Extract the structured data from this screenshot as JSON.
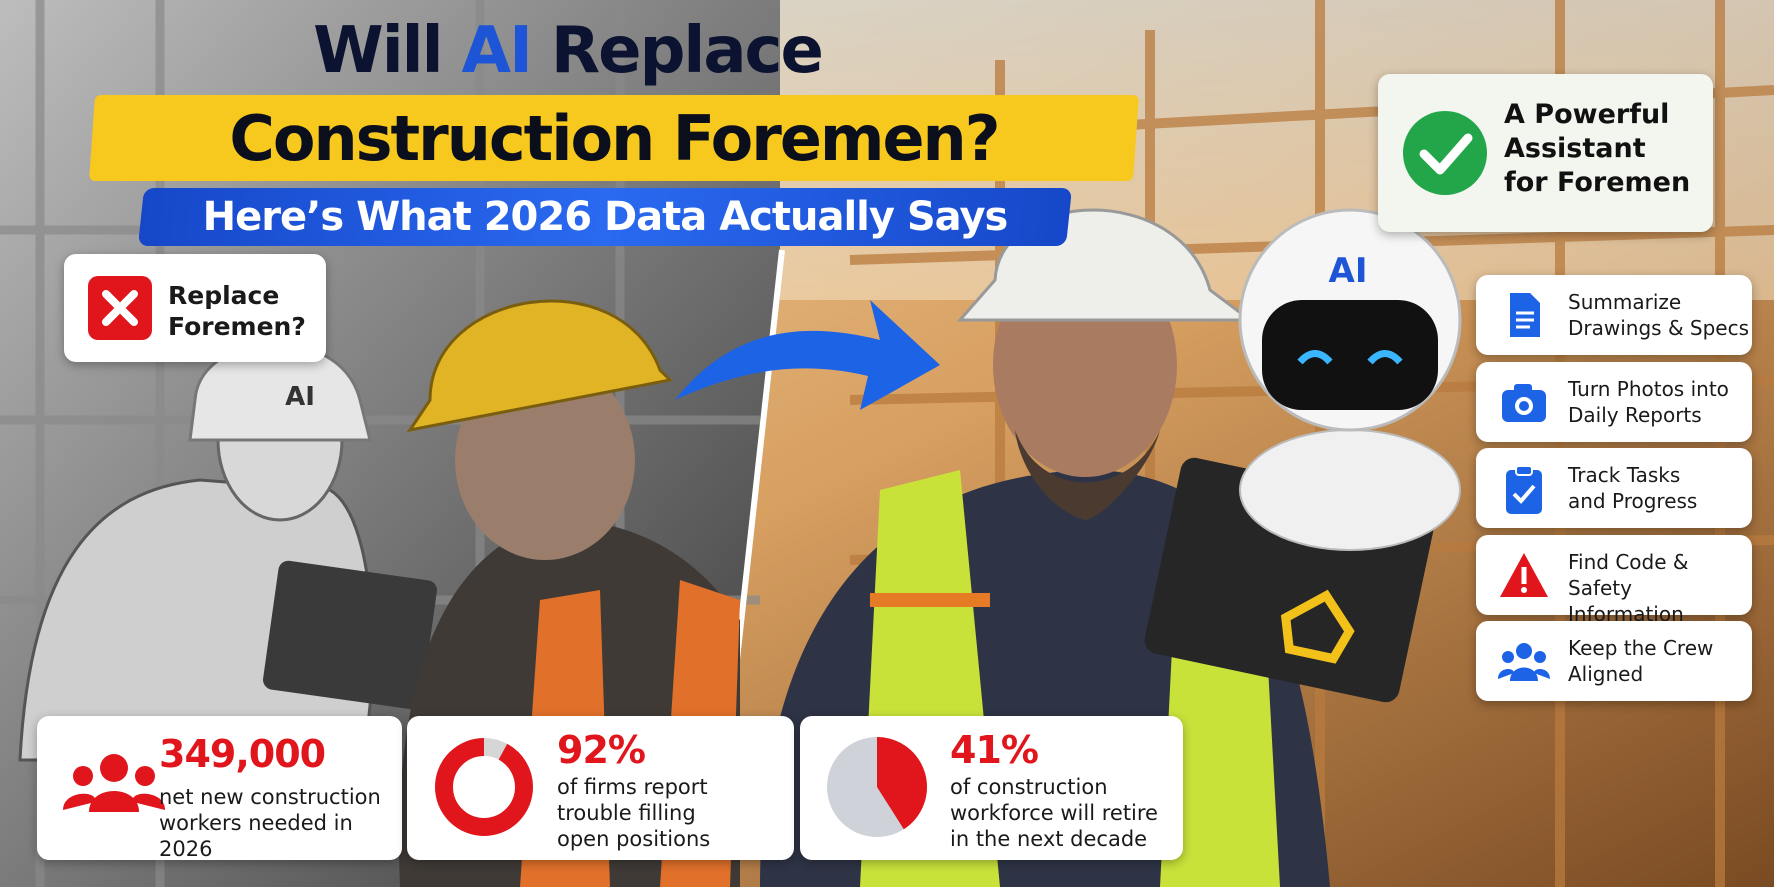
{
  "title": {
    "line1": [
      "Will",
      "AI",
      "Replace"
    ],
    "line2": "Construction Foremen?",
    "subtitle": "Here’s What 2026 Data Actually Says"
  },
  "left_callout": {
    "lines": [
      "Replace",
      "Foremen?"
    ]
  },
  "right_callout": {
    "lines": [
      "A Powerful",
      "Assistant",
      "for Foremen"
    ]
  },
  "helmet_labels": {
    "left_robot": "AI",
    "right_robot": "AI"
  },
  "features": [
    {
      "lines": [
        "Summarize",
        "Drawings & Specs"
      ]
    },
    {
      "lines": [
        "Turn Photos into",
        "Daily Reports"
      ]
    },
    {
      "lines": [
        "Track Tasks",
        "and Progress"
      ]
    },
    {
      "lines": [
        "Find Code &",
        "Safety Information"
      ]
    },
    {
      "lines": [
        "Keep the Crew",
        "Aligned"
      ]
    }
  ],
  "stats": [
    {
      "label": "349,000",
      "lines": [
        "net new construction",
        "workers needed in 2026"
      ]
    },
    {
      "value": 92,
      "label": "92%",
      "lines": [
        "of firms report",
        "trouble filling",
        "open positions"
      ]
    },
    {
      "value": 41,
      "label": "41%",
      "lines": [
        "of construction",
        "workforce will retire",
        "in the next decade"
      ]
    }
  ]
}
